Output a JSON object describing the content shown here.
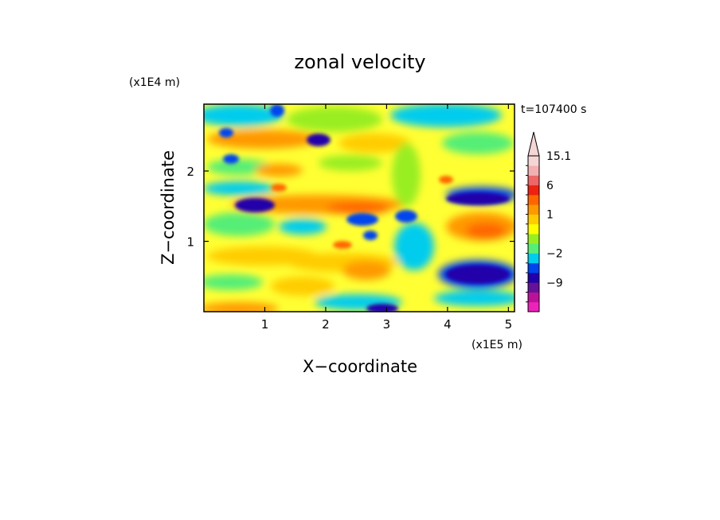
{
  "chart_data": {
    "type": "heatmap",
    "title": "zonal velocity",
    "xlabel": "X−coordinate",
    "ylabel": "Z−coordinate",
    "x_scale_label": "(x1E5 m)",
    "y_scale_label": "(x1E4 m)",
    "time_label": "t=107400 s",
    "xlim": [
      0,
      5.1
    ],
    "ylim": [
      0,
      2.95
    ],
    "xticks": [
      1,
      2,
      3,
      4,
      5
    ],
    "xtick_labels": [
      "1",
      "2",
      "3",
      "4",
      "5"
    ],
    "yticks": [
      1,
      2
    ],
    "ytick_labels": [
      "1",
      "2"
    ],
    "colorbar": {
      "extend": "max",
      "levels": [
        -15,
        -12,
        -9,
        -6,
        -4,
        -2,
        -1,
        0,
        0.5,
        1,
        2,
        4,
        6,
        8,
        11,
        15.1
      ],
      "colors": [
        "#ee22bb",
        "#bb1199",
        "#661199",
        "#2200aa",
        "#0044ee",
        "#00ccee",
        "#55ee77",
        "#99ee22",
        "#ffff00",
        "#ffcc00",
        "#ff9900",
        "#ff6600",
        "#ee2211",
        "#ee6666",
        "#f3b0b0",
        "#f5d5d5"
      ],
      "tick_labels": [
        {
          "level": 15.1,
          "label": "15.1"
        },
        {
          "level": 6,
          "label": "6"
        },
        {
          "level": 1,
          "label": "1"
        },
        {
          "level": -2,
          "label": "−2"
        },
        {
          "level": -9,
          "label": "−9"
        }
      ]
    }
  }
}
